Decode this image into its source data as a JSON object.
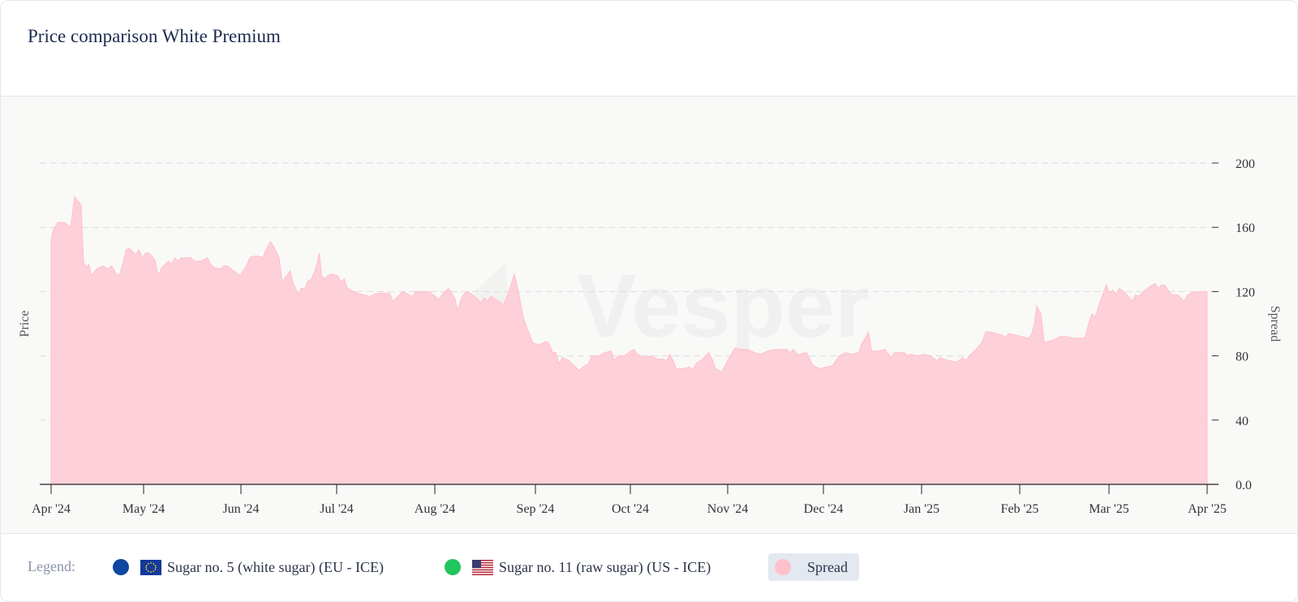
{
  "title": "Price comparison White Premium",
  "legend": {
    "label": "Legend:",
    "items": [
      {
        "label": "Sugar no. 5 (white sugar) (EU - ICE)",
        "color": "#0d47a1",
        "flag": "eu-flag-icon"
      },
      {
        "label": "Sugar no. 11 (raw sugar) (US - ICE)",
        "color": "#22c55e",
        "flag": "us-flag-icon"
      },
      {
        "label": "Spread",
        "color": "#ffc1cb"
      }
    ]
  },
  "watermark": "Vesper",
  "chart_data": {
    "type": "area",
    "ylabel": "Price",
    "y2label": "Spread",
    "ylim": [
      0,
      200
    ],
    "yticks": [
      "0.0",
      "40",
      "80",
      "120",
      "160",
      "200"
    ],
    "grid": true,
    "xticks": [
      "Apr '24",
      "May '24",
      "Jun '24",
      "Jul '24",
      "Aug '24",
      "Sep '24",
      "Oct '24",
      "Nov '24",
      "Dec '24",
      "Jan '25",
      "Feb '25",
      "Mar '25",
      "Apr '25"
    ],
    "series": [
      {
        "name": "Spread",
        "color": "#ffc9d3",
        "points": [
          [
            0,
            152
          ],
          [
            0.3,
            158
          ],
          [
            1,
            163
          ],
          [
            2,
            163
          ],
          [
            3,
            160
          ],
          [
            3.6,
            179
          ],
          [
            4.6,
            174
          ],
          [
            5,
            138
          ],
          [
            5.5,
            135
          ],
          [
            5.8,
            137
          ],
          [
            6.2,
            130
          ],
          [
            7,
            134
          ],
          [
            8,
            136
          ],
          [
            8.7,
            134
          ],
          [
            9.3,
            136
          ],
          [
            10,
            131
          ],
          [
            10.5,
            130
          ],
          [
            11,
            137
          ],
          [
            11.5,
            146
          ],
          [
            12,
            147
          ],
          [
            13,
            143
          ],
          [
            13.5,
            146
          ],
          [
            14,
            141
          ],
          [
            14.5,
            144
          ],
          [
            15,
            144
          ],
          [
            15.5,
            142
          ],
          [
            16,
            139
          ],
          [
            16.3,
            132
          ],
          [
            16.6,
            131
          ],
          [
            17,
            135
          ],
          [
            18,
            139
          ],
          [
            18.5,
            137
          ],
          [
            19,
            141
          ],
          [
            19.5,
            139
          ],
          [
            20,
            141
          ],
          [
            21,
            141
          ],
          [
            21.5,
            141
          ],
          [
            22,
            139
          ],
          [
            22.5,
            139
          ],
          [
            23,
            139
          ],
          [
            24,
            141
          ],
          [
            24.5,
            137
          ],
          [
            25,
            135
          ],
          [
            26,
            134
          ],
          [
            26.5,
            136
          ],
          [
            27,
            136
          ],
          [
            28,
            133
          ],
          [
            29,
            130
          ],
          [
            30,
            136
          ],
          [
            30.5,
            141
          ],
          [
            31,
            142
          ],
          [
            32,
            142
          ],
          [
            32.5,
            141
          ],
          [
            33,
            146
          ],
          [
            33.7,
            151
          ],
          [
            34.2,
            148
          ],
          [
            35,
            141
          ],
          [
            35.5,
            126
          ],
          [
            36,
            129
          ],
          [
            36.7,
            133
          ],
          [
            37.2,
            125
          ],
          [
            38,
            118
          ],
          [
            38.4,
            122
          ],
          [
            39,
            122
          ],
          [
            39.3,
            126
          ],
          [
            40,
            128
          ],
          [
            40.6,
            134
          ],
          [
            41.2,
            144
          ],
          [
            41.5,
            130
          ],
          [
            42,
            128
          ],
          [
            42.5,
            130
          ],
          [
            43,
            131
          ],
          [
            44,
            130
          ],
          [
            44.5,
            126
          ],
          [
            45,
            128
          ],
          [
            45.5,
            122
          ],
          [
            46,
            121
          ],
          [
            47,
            119
          ],
          [
            48,
            118
          ],
          [
            49,
            117
          ],
          [
            50,
            119
          ],
          [
            51,
            119
          ],
          [
            52,
            119
          ],
          [
            52.5,
            114
          ],
          [
            53,
            116
          ],
          [
            54,
            120
          ],
          [
            55,
            118
          ],
          [
            55.5,
            117
          ],
          [
            56,
            120
          ],
          [
            57,
            120
          ],
          [
            58,
            120
          ],
          [
            59,
            117
          ],
          [
            59.5,
            115
          ],
          [
            60,
            118
          ],
          [
            61,
            122
          ],
          [
            62,
            116
          ],
          [
            62.4,
            108
          ],
          [
            63,
            116
          ],
          [
            63.5,
            119
          ],
          [
            64,
            120
          ],
          [
            65,
            117
          ],
          [
            66,
            113
          ],
          [
            66.5,
            116
          ],
          [
            67,
            114
          ],
          [
            67.5,
            117
          ],
          [
            68,
            116
          ],
          [
            69,
            113
          ],
          [
            69.5,
            112
          ],
          [
            70,
            117
          ],
          [
            70.6,
            124
          ],
          [
            71.1,
            131
          ],
          [
            71.5,
            125
          ],
          [
            72,
            115
          ],
          [
            72.5,
            104
          ],
          [
            73,
            98
          ],
          [
            74,
            88
          ],
          [
            75,
            87
          ],
          [
            76,
            89
          ],
          [
            76.4,
            88
          ],
          [
            77,
            82
          ],
          [
            77.5,
            82
          ],
          [
            78,
            75
          ],
          [
            78.5,
            79
          ],
          [
            79.5,
            77
          ],
          [
            80,
            75
          ],
          [
            81,
            71
          ],
          [
            82,
            74
          ],
          [
            82.5,
            75
          ],
          [
            83,
            80
          ],
          [
            84,
            80
          ],
          [
            84.5,
            81
          ],
          [
            85,
            82
          ],
          [
            86,
            83
          ],
          [
            86.5,
            77
          ],
          [
            87,
            80
          ],
          [
            88,
            80
          ],
          [
            89,
            83
          ],
          [
            89.5,
            84
          ],
          [
            90,
            81
          ],
          [
            91,
            79
          ],
          [
            92,
            80
          ],
          [
            93,
            78
          ],
          [
            94,
            78
          ],
          [
            94.5,
            77
          ],
          [
            95,
            81
          ],
          [
            95.5,
            77
          ],
          [
            96,
            72
          ],
          [
            97,
            72
          ],
          [
            98,
            73
          ],
          [
            98.5,
            71
          ],
          [
            99,
            75
          ],
          [
            100,
            78
          ],
          [
            101,
            82
          ],
          [
            101.5,
            78
          ],
          [
            102,
            72
          ],
          [
            103,
            70
          ],
          [
            104,
            78
          ],
          [
            105,
            85
          ],
          [
            106,
            84
          ],
          [
            107,
            84
          ],
          [
            108,
            82
          ],
          [
            109,
            81
          ],
          [
            110,
            83
          ],
          [
            111,
            84
          ],
          [
            112,
            84
          ],
          [
            113,
            84
          ],
          [
            113.5,
            82
          ],
          [
            114,
            84
          ],
          [
            114.5,
            81
          ],
          [
            115,
            81
          ],
          [
            116,
            82
          ],
          [
            117,
            74
          ],
          [
            118,
            72
          ],
          [
            119,
            73
          ],
          [
            120,
            74
          ],
          [
            121,
            80
          ],
          [
            122,
            82
          ],
          [
            123,
            81
          ],
          [
            124,
            82
          ],
          [
            124.5,
            88
          ],
          [
            125,
            91
          ],
          [
            125.5,
            95
          ],
          [
            126,
            83
          ],
          [
            127,
            83
          ],
          [
            128,
            84
          ],
          [
            129,
            79
          ],
          [
            129.5,
            82
          ],
          [
            130,
            82
          ],
          [
            131,
            82
          ],
          [
            131.5,
            80
          ],
          [
            132,
            81
          ],
          [
            133,
            80
          ],
          [
            134,
            81
          ],
          [
            135,
            80
          ],
          [
            136,
            77
          ],
          [
            136.5,
            79
          ],
          [
            137,
            78
          ],
          [
            138,
            77
          ],
          [
            139,
            76
          ],
          [
            140,
            79
          ],
          [
            140.5,
            77
          ],
          [
            141,
            80
          ],
          [
            142,
            84
          ],
          [
            143,
            89
          ],
          [
            143.5,
            95
          ],
          [
            144,
            95
          ],
          [
            145,
            94
          ],
          [
            146,
            93
          ],
          [
            146.5,
            91
          ],
          [
            147,
            94
          ],
          [
            148,
            93
          ],
          [
            149,
            92
          ],
          [
            150,
            91
          ],
          [
            150.5,
            93
          ],
          [
            151,
            100
          ],
          [
            151.3,
            111
          ],
          [
            152,
            106
          ],
          [
            152.5,
            88
          ],
          [
            153,
            89
          ],
          [
            154,
            90
          ],
          [
            155,
            92
          ],
          [
            156,
            92
          ],
          [
            157,
            91
          ],
          [
            158,
            91
          ],
          [
            158.7,
            91
          ],
          [
            159.3,
            100
          ],
          [
            159.8,
            106
          ],
          [
            160.3,
            104
          ],
          [
            161,
            113
          ],
          [
            162,
            124
          ],
          [
            162.5,
            119
          ],
          [
            163,
            121
          ],
          [
            163.6,
            118
          ],
          [
            164,
            122
          ],
          [
            165,
            119
          ],
          [
            166,
            114
          ],
          [
            166.5,
            118
          ],
          [
            167,
            117
          ],
          [
            168,
            121
          ],
          [
            169,
            124
          ],
          [
            169.5,
            125
          ],
          [
            170,
            122
          ],
          [
            170.5,
            124
          ],
          [
            171,
            124
          ],
          [
            172,
            118
          ],
          [
            172.5,
            118
          ],
          [
            173,
            118
          ],
          [
            174,
            114
          ],
          [
            174.5,
            118
          ],
          [
            175,
            119
          ],
          [
            176,
            120
          ],
          [
            177,
            120
          ],
          [
            177.5,
            120
          ]
        ]
      }
    ]
  }
}
